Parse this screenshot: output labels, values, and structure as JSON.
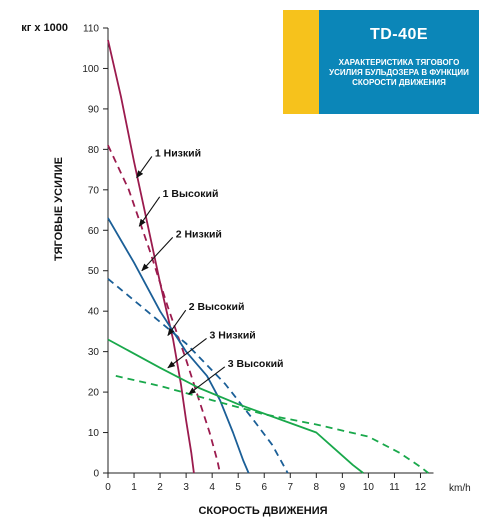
{
  "badge": {
    "title": "TD-40E",
    "subtitle": "ХАРАКТЕРИСТИКА ТЯГОВОГО УСИЛИЯ БУЛЬДОЗЕРА В ФУНКЦИИ СКОРОСТИ ДВИЖЕНИЯ",
    "colors": {
      "accent": "#f6c21c",
      "main": "#0b86b8"
    }
  },
  "chart_data": {
    "type": "line",
    "title": "TD-40E",
    "subtitle": "ХАРАКТЕРИСТИКА ТЯГОВОГО УСИЛИЯ БУЛЬДОЗЕРА В ФУНКЦИИ СКОРОСТИ ДВИЖЕНИЯ",
    "xlabel": "СКОРОСТЬ ДВИЖЕНИЯ",
    "x_unit": "km/h",
    "ylabel": "ТЯГОВЫЕ УСИЛИЕ",
    "y_unit": "кг x 1000",
    "xlim": [
      0,
      12.5
    ],
    "ylim": [
      0,
      110
    ],
    "x_ticks": [
      "0",
      "1",
      "2",
      "3",
      "4",
      "5",
      "6",
      "7",
      "8",
      "9",
      "10",
      "11",
      "12"
    ],
    "y_ticks": [
      "0",
      "10",
      "20",
      "30",
      "40",
      "50",
      "60",
      "70",
      "80",
      "90",
      "100",
      "110"
    ],
    "grid": false,
    "series": [
      {
        "name": "1 Низкий",
        "color": "#9b1b4e",
        "dash": false,
        "points": [
          [
            0,
            107
          ],
          [
            0.5,
            93
          ],
          [
            1,
            77
          ],
          [
            1.5,
            62
          ],
          [
            2,
            47
          ],
          [
            2.5,
            33
          ],
          [
            2.8,
            22
          ],
          [
            3,
            13
          ],
          [
            3.2,
            5
          ],
          [
            3.3,
            0
          ]
        ]
      },
      {
        "name": "1 Высокий",
        "color": "#9b1b4e",
        "dash": true,
        "points": [
          [
            0,
            81
          ],
          [
            0.8,
            70
          ],
          [
            1.6,
            55
          ],
          [
            2.3,
            41
          ],
          [
            3,
            28
          ],
          [
            3.5,
            18
          ],
          [
            3.9,
            10
          ],
          [
            4.2,
            3
          ],
          [
            4.3,
            0
          ]
        ]
      },
      {
        "name": "2 Низкий",
        "color": "#1b5f97",
        "dash": false,
        "points": [
          [
            0,
            63
          ],
          [
            1,
            52
          ],
          [
            2,
            40
          ],
          [
            3,
            30
          ],
          [
            3.8,
            24
          ],
          [
            4.3,
            18
          ],
          [
            4.8,
            10
          ],
          [
            5.2,
            3
          ],
          [
            5.4,
            0
          ]
        ]
      },
      {
        "name": "2 Высокий",
        "color": "#1b5f97",
        "dash": true,
        "points": [
          [
            0,
            48
          ],
          [
            1.5,
            40
          ],
          [
            3,
            32
          ],
          [
            4.5,
            22
          ],
          [
            5.6,
            13
          ],
          [
            6.3,
            7
          ],
          [
            6.9,
            0
          ]
        ]
      },
      {
        "name": "3 Низкий",
        "color": "#19a84b",
        "dash": false,
        "points": [
          [
            0,
            33
          ],
          [
            2,
            26
          ],
          [
            3.5,
            21
          ],
          [
            5,
            17
          ],
          [
            6.5,
            13.5
          ],
          [
            8,
            10
          ],
          [
            8.7,
            6
          ],
          [
            9.4,
            2
          ],
          [
            9.8,
            0
          ]
        ]
      },
      {
        "name": "3 Высокий",
        "color": "#19a84b",
        "dash": true,
        "points": [
          [
            0.3,
            24
          ],
          [
            2,
            21.5
          ],
          [
            4,
            18
          ],
          [
            6,
            14.5
          ],
          [
            8,
            12
          ],
          [
            10,
            9
          ],
          [
            11.2,
            5
          ],
          [
            12,
            1.5
          ],
          [
            12.3,
            0
          ]
        ]
      }
    ],
    "annotations": [
      {
        "text": "1 Низкий",
        "x": 1.8,
        "y": 79,
        "target": [
          1.1,
          73
        ]
      },
      {
        "text": "1 Высокий",
        "x": 2.1,
        "y": 69,
        "target": [
          1.2,
          61
        ]
      },
      {
        "text": "2 Низкий",
        "x": 2.6,
        "y": 59,
        "target": [
          1.3,
          50
        ]
      },
      {
        "text": "2 Высокий",
        "x": 3.1,
        "y": 41,
        "target": [
          2.3,
          34
        ]
      },
      {
        "text": "3 Низкий",
        "x": 3.9,
        "y": 34,
        "target": [
          2.3,
          26
        ]
      },
      {
        "text": "3 Высокий",
        "x": 4.6,
        "y": 27,
        "target": [
          3.1,
          19.5
        ]
      }
    ]
  }
}
